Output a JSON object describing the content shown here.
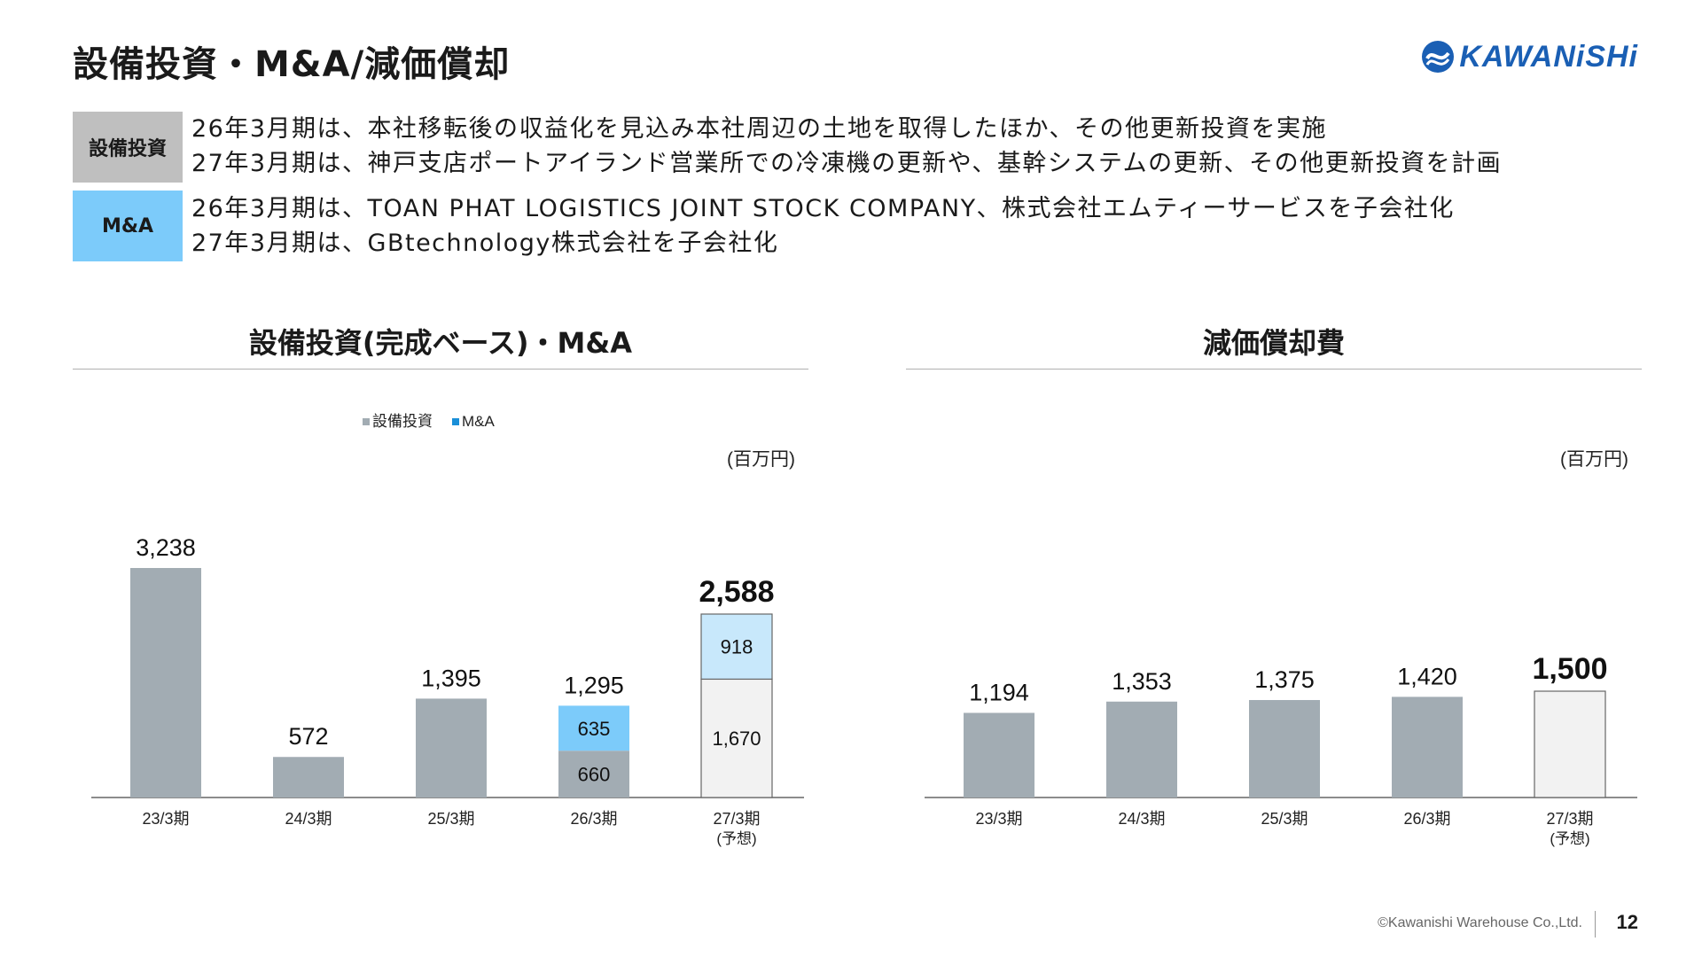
{
  "slide": {
    "title": "設備投資・M&A/減価償却",
    "logo_text": "KAWANiSHi",
    "footer_copyright": "©Kawanishi Warehouse Co.,Ltd.",
    "page_number": "12"
  },
  "summary": {
    "capex": {
      "tag": "設備投資",
      "lines": [
        "26年3月期は、本社移転後の収益化を見込み本社周辺の土地を取得したほか、その他更新投資を実施",
        "27年3月期は、神戸支店ポートアイランド営業所での冷凍機の更新や、基幹システムの更新、その他更新投資を計画"
      ]
    },
    "mna": {
      "tag": "M&A",
      "lines": [
        "26年3月期は、TOAN PHAT LOGISTICS JOINT STOCK COMPANY、株式会社エムティーサービスを子会社化",
        "27年3月期は、GBtechnology株式会社を子会社化"
      ]
    }
  },
  "chart_data": [
    {
      "type": "bar",
      "stacked": true,
      "title": "設備投資(完成ベース)・M&A",
      "unit_label": "(百万円)",
      "legend_position": "top",
      "categories": [
        "23/3期",
        "24/3期",
        "25/3期",
        "26/3期",
        "27/3期"
      ],
      "category_notes": [
        "",
        "",
        "",
        "",
        "(予想)"
      ],
      "series": [
        {
          "name": "設備投資",
          "values": [
            3238,
            572,
            1395,
            660,
            1670
          ],
          "color": "#a2acb3",
          "forecast_color": "#f2f2f2"
        },
        {
          "name": "M&A",
          "values": [
            0,
            0,
            0,
            635,
            918
          ],
          "color": "#7ccbfa",
          "forecast_color": "#c8e8fb"
        }
      ],
      "segment_labels": [
        [
          "",
          "",
          "",
          "660",
          "1,670"
        ],
        [
          "",
          "",
          "",
          "635",
          "918"
        ]
      ],
      "totals": [
        "3,238",
        "572",
        "1,395",
        "1,295",
        "2,588"
      ],
      "forecast_index": 4,
      "ylim": [
        0,
        3238
      ],
      "grid": false
    },
    {
      "type": "bar",
      "title": "減価償却費",
      "unit_label": "(百万円)",
      "categories": [
        "23/3期",
        "24/3期",
        "25/3期",
        "26/3期",
        "27/3期"
      ],
      "category_notes": [
        "",
        "",
        "",
        "",
        "(予想)"
      ],
      "series": [
        {
          "values": [
            1194,
            1353,
            1375,
            1420,
            1500
          ],
          "color": "#a2acb3",
          "forecast_color": "#f2f2f2"
        }
      ],
      "totals": [
        "1,194",
        "1,353",
        "1,375",
        "1,420",
        "1,500"
      ],
      "forecast_index": 4,
      "ylim": [
        0,
        3238
      ],
      "grid": false
    }
  ]
}
